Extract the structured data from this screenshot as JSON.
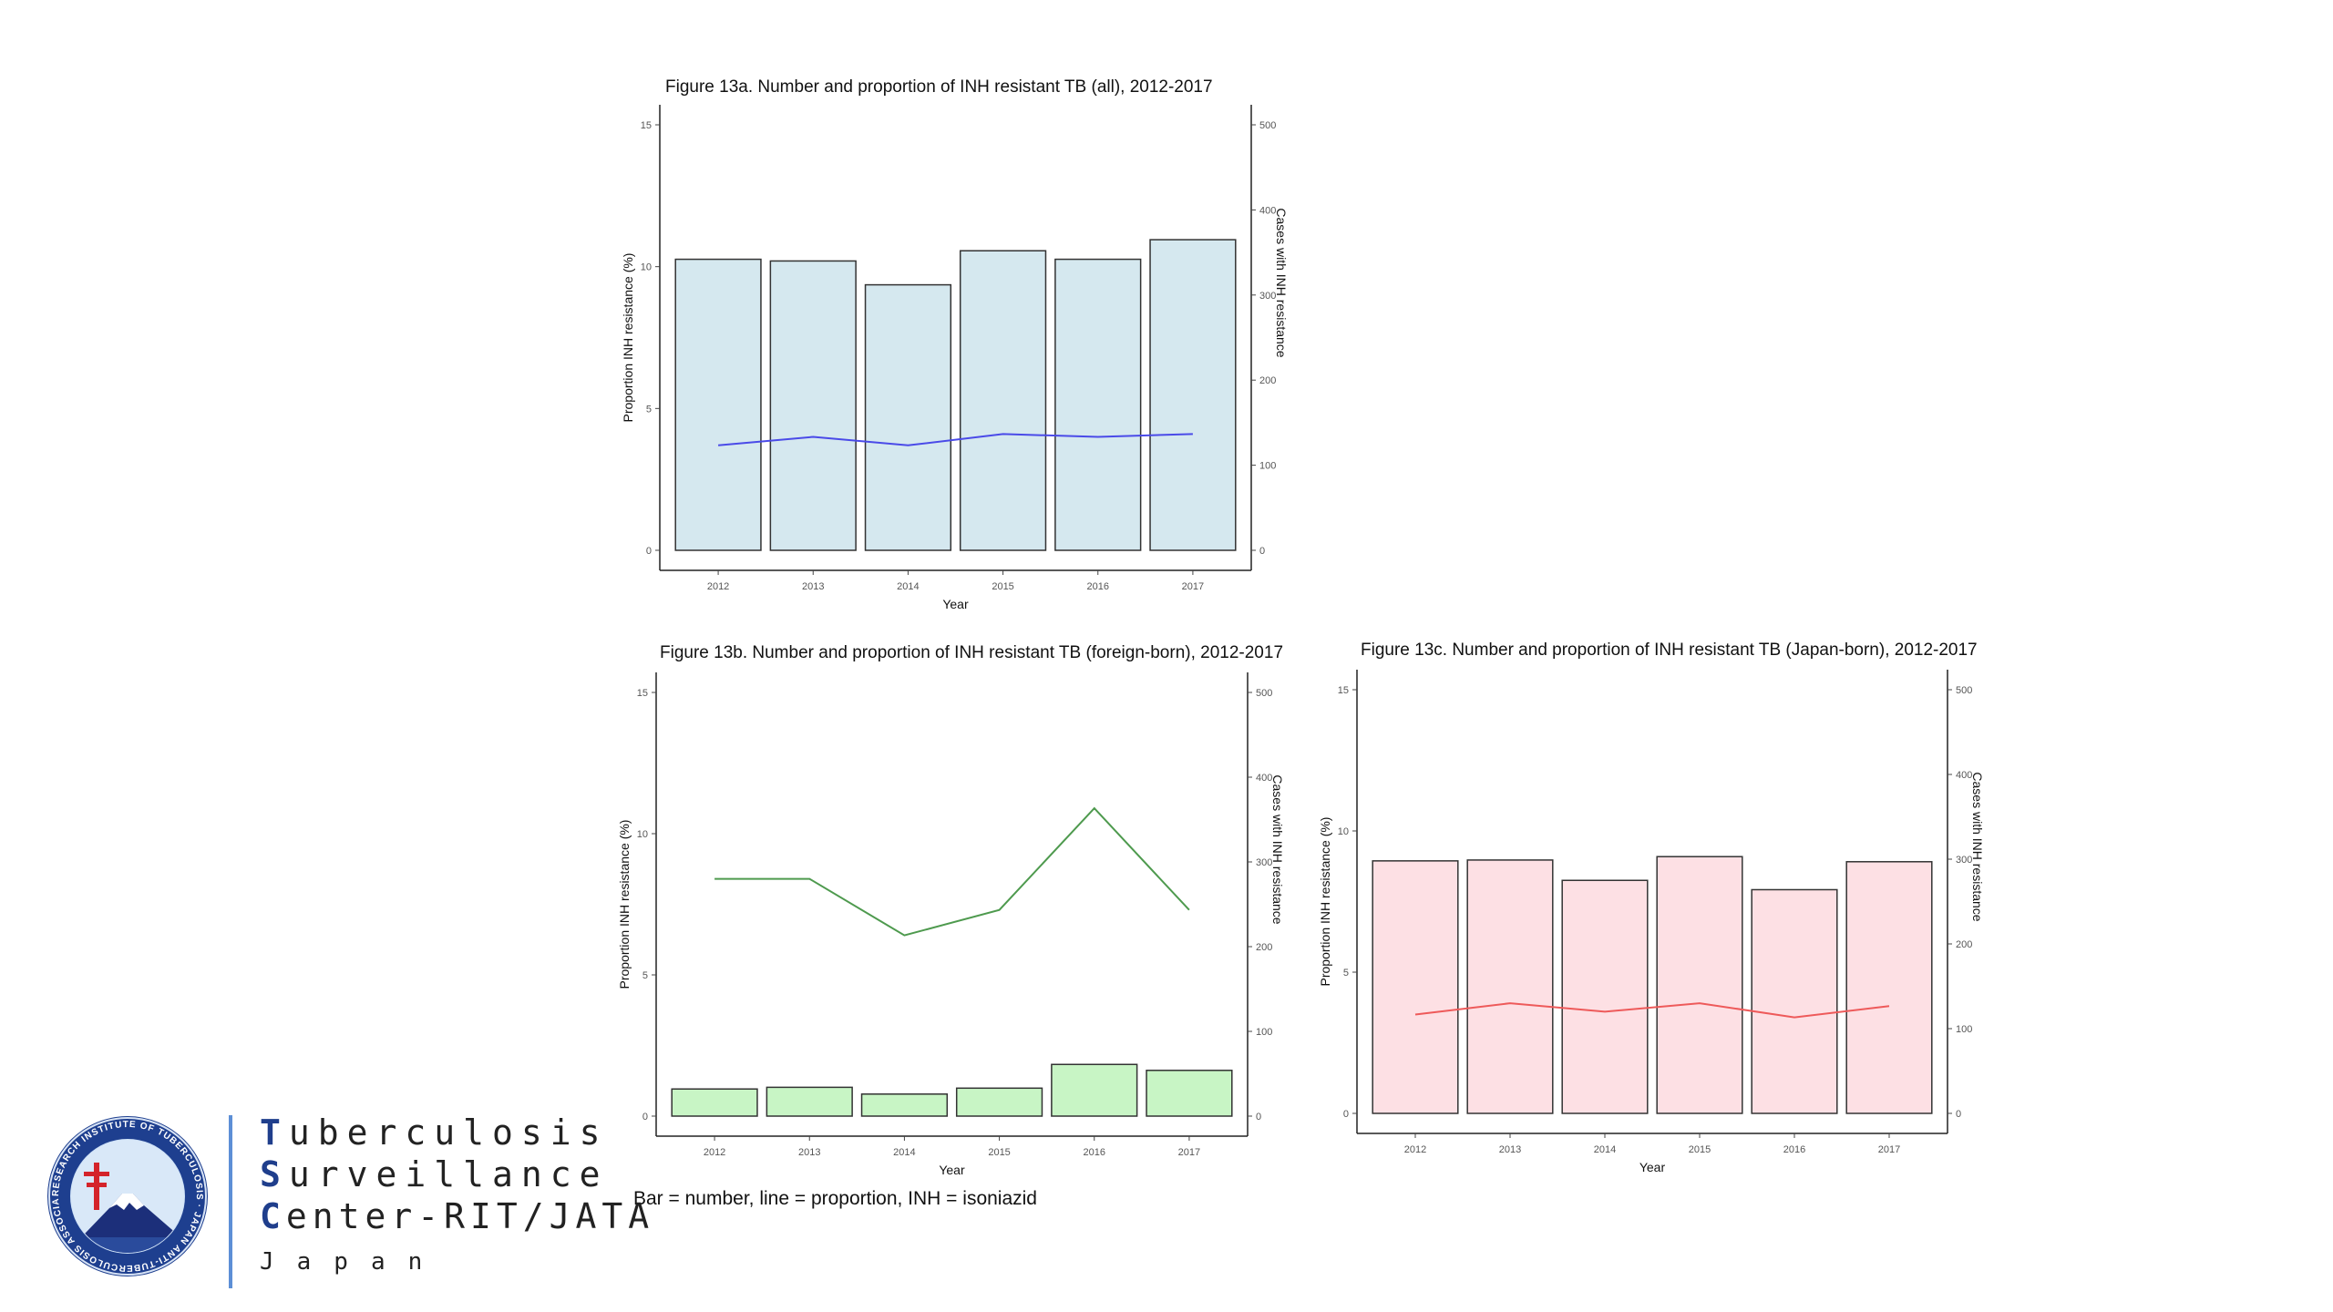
{
  "chart_data": [
    {
      "id": "fig13a",
      "type": "bar",
      "title": "Figure 13a. Number and proportion of INH resistant TB (all), 2012-2017",
      "xlabel": "Year",
      "ylabel": "Proportion INH resistance (%)",
      "y2label": "Cases with INH resistance",
      "categories": [
        "2012",
        "2013",
        "2014",
        "2015",
        "2016",
        "2017"
      ],
      "ylim": [
        0,
        15
      ],
      "yticks": [
        0,
        5,
        10,
        15
      ],
      "y2lim": [
        0,
        500
      ],
      "y2ticks": [
        0,
        100,
        200,
        300,
        400,
        500
      ],
      "series": [
        {
          "name": "number",
          "kind": "bar",
          "axis": "y2",
          "values": [
            342,
            340,
            312,
            352,
            342,
            365
          ]
        },
        {
          "name": "proportion",
          "kind": "line",
          "axis": "y",
          "values": [
            3.7,
            4.0,
            3.7,
            4.1,
            4.0,
            4.1
          ]
        }
      ],
      "bar_fill": "#d5e8ef",
      "line_color": "#4a4ae8"
    },
    {
      "id": "fig13b",
      "type": "bar",
      "title": "Figure 13b. Number and proportion of INH resistant TB (foreign-born), 2012-2017",
      "xlabel": "Year",
      "ylabel": "Proportion INH resistance (%)",
      "y2label": "Cases with INH resistance",
      "categories": [
        "2012",
        "2013",
        "2014",
        "2015",
        "2016",
        "2017"
      ],
      "ylim": [
        0,
        15
      ],
      "yticks": [
        0,
        5,
        10,
        15
      ],
      "y2lim": [
        0,
        500
      ],
      "y2ticks": [
        0,
        100,
        200,
        300,
        400,
        500
      ],
      "series": [
        {
          "name": "number",
          "kind": "bar",
          "axis": "y2",
          "values": [
            32,
            34,
            26,
            33,
            61,
            54
          ]
        },
        {
          "name": "proportion",
          "kind": "line",
          "axis": "y",
          "values": [
            8.4,
            8.4,
            6.4,
            7.3,
            10.9,
            7.3
          ]
        }
      ],
      "bar_fill": "#c8f5c5",
      "line_color": "#4e9a4e"
    },
    {
      "id": "fig13c",
      "type": "bar",
      "title": "Figure 13c. Number and proportion of INH resistant TB (Japan-born), 2012-2017",
      "xlabel": "Year",
      "ylabel": "Proportion INH resistance (%)",
      "y2label": "Cases with INH resistance",
      "categories": [
        "2012",
        "2013",
        "2014",
        "2015",
        "2016",
        "2017"
      ],
      "ylim": [
        0,
        15
      ],
      "yticks": [
        0,
        5,
        10,
        15
      ],
      "y2lim": [
        0,
        500
      ],
      "y2ticks": [
        0,
        100,
        200,
        300,
        400,
        500
      ],
      "series": [
        {
          "name": "number",
          "kind": "bar",
          "axis": "y2",
          "values": [
            298,
            299,
            275,
            303,
            264,
            297
          ]
        },
        {
          "name": "proportion",
          "kind": "line",
          "axis": "y",
          "values": [
            3.5,
            3.9,
            3.6,
            3.9,
            3.4,
            3.8
          ]
        }
      ],
      "bar_fill": "#fde0e4",
      "line_color": "#ee5a5a"
    }
  ],
  "footnote": "Bar = number, line = proportion, INH = isoniazid",
  "brand": {
    "line1_cap": "T",
    "line1_rest": "uberculosis",
    "line2_cap": "S",
    "line2_rest": "urveillance",
    "line3_cap": "C",
    "line3_rest": "enter-RIT/JATA",
    "line4": "Japan",
    "logo_ring_text": "RESEARCH INSTITUTE OF TUBERCULOSIS · JAPAN ANTI-TUBERCULOSIS ASSOCIATION"
  }
}
